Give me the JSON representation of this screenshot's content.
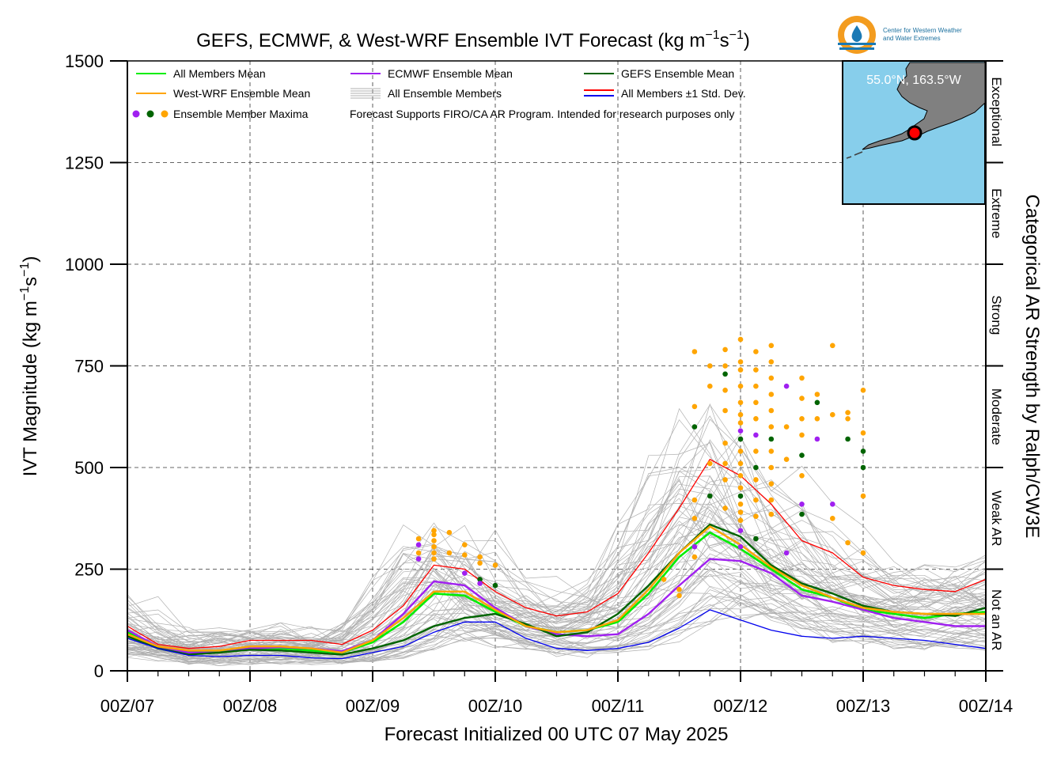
{
  "chart_data": {
    "type": "line",
    "title_main": "GEFS, ECMWF, & West-WRF Ensemble IVT Forecast (kg m",
    "title_sup1": "−1",
    "title_mid": "s",
    "title_sup2": "−1",
    "title_end": ")",
    "xlabel": "Forecast Initialized 00 UTC 07 May 2025",
    "ylabel_main": "IVT Magnitude (kg m",
    "ylabel_sup1": "−1",
    "ylabel_mid": "s",
    "ylabel_sup2": "−1",
    "ylabel_end": ")",
    "right_label": "Categorical AR Strength by Ralph/CW3E",
    "logo_text_1": "Center for Western Weather",
    "logo_text_2": "and Water Extremes",
    "location": "55.0°N, 163.5°W",
    "notice": "Forecast Supports FIRO/CA AR Program. Intended for research purposes only",
    "xlim": [
      0,
      168
    ],
    "ylim": [
      0,
      1500
    ],
    "x_ticks": [
      0,
      24,
      48,
      72,
      96,
      120,
      144,
      168
    ],
    "x_tick_labels": [
      "00Z/07",
      "00Z/08",
      "00Z/09",
      "00Z/10",
      "00Z/11",
      "00Z/12",
      "00Z/13",
      "00Z/14"
    ],
    "y_ticks": [
      0,
      250,
      500,
      750,
      1000,
      1250,
      1500
    ],
    "y_tick_labels": [
      "0",
      "250",
      "500",
      "750",
      "1000",
      "1250",
      "1500"
    ],
    "grid": true,
    "categories": [
      {
        "label": "Not an AR",
        "from": 0,
        "to": 250
      },
      {
        "label": "Weak AR",
        "from": 250,
        "to": 500
      },
      {
        "label": "Moderate",
        "from": 500,
        "to": 750
      },
      {
        "label": "Strong",
        "from": 750,
        "to": 1000
      },
      {
        "label": "Extreme",
        "from": 1000,
        "to": 1250
      },
      {
        "label": "Exceptional",
        "from": 1250,
        "to": 1500
      }
    ],
    "legend": [
      {
        "label": "All Members Mean",
        "color": "#00ee00",
        "kind": "line"
      },
      {
        "label": "ECMWF Ensemble Mean",
        "color": "#a020f0",
        "kind": "line"
      },
      {
        "label": "GEFS Ensemble Mean",
        "color": "#006400",
        "kind": "line"
      },
      {
        "label": "West-WRF Ensemble Mean",
        "color": "#ffa500",
        "kind": "line"
      },
      {
        "label": "All Ensemble Members",
        "color": "#b0b0b0",
        "kind": "multiline"
      },
      {
        "label": "All Members ±1 Std. Dev.",
        "color": "#ff0000",
        "color2": "#0000ee",
        "kind": "doubleline"
      },
      {
        "label": "Ensemble Member Maxima",
        "color": "#a020f0",
        "color2": "#006400",
        "color3": "#ffa500",
        "kind": "dots"
      }
    ],
    "x": [
      0,
      6,
      12,
      18,
      24,
      30,
      36,
      42,
      48,
      54,
      60,
      66,
      72,
      78,
      84,
      90,
      96,
      102,
      108,
      114,
      120,
      126,
      132,
      138,
      144,
      150,
      156,
      162,
      168
    ],
    "series": [
      {
        "name": "All Members Mean",
        "color": "#00ee00",
        "width": 2.6,
        "values": [
          95,
          60,
          45,
          48,
          55,
          55,
          50,
          45,
          70,
          120,
          190,
          185,
          145,
          110,
          95,
          100,
          120,
          190,
          280,
          340,
          300,
          250,
          200,
          180,
          150,
          140,
          130,
          140,
          145
        ]
      },
      {
        "name": "ECMWF Ensemble Mean",
        "color": "#a020f0",
        "width": 2.4,
        "values": [
          100,
          60,
          45,
          45,
          55,
          58,
          55,
          48,
          75,
          140,
          220,
          210,
          155,
          110,
          90,
          85,
          90,
          140,
          210,
          275,
          270,
          240,
          185,
          170,
          150,
          130,
          120,
          110,
          110
        ]
      },
      {
        "name": "GEFS Ensemble Mean",
        "color": "#006400",
        "width": 2.4,
        "values": [
          85,
          55,
          40,
          45,
          52,
          50,
          45,
          40,
          55,
          75,
          110,
          130,
          140,
          115,
          85,
          95,
          140,
          210,
          290,
          360,
          330,
          260,
          215,
          190,
          160,
          145,
          140,
          135,
          155
        ]
      },
      {
        "name": "West-WRF Ensemble Mean",
        "color": "#ffa500",
        "width": 2.4,
        "values": [
          90,
          60,
          50,
          50,
          60,
          60,
          55,
          45,
          75,
          130,
          195,
          195,
          150,
          110,
          95,
          100,
          125,
          200,
          290,
          355,
          310,
          255,
          210,
          180,
          155,
          145,
          140,
          140,
          140
        ]
      },
      {
        "name": "All Members +1 Std. Dev.",
        "color": "#ff0000",
        "width": 1.3,
        "values": [
          110,
          65,
          55,
          60,
          75,
          75,
          75,
          65,
          100,
          160,
          260,
          250,
          195,
          155,
          135,
          145,
          190,
          290,
          400,
          520,
          480,
          410,
          320,
          290,
          230,
          210,
          200,
          195,
          225
        ]
      },
      {
        "name": "All Members -1 Std. Dev.",
        "color": "#0000ee",
        "width": 1.3,
        "values": [
          80,
          55,
          38,
          35,
          38,
          38,
          32,
          30,
          45,
          60,
          95,
          120,
          120,
          80,
          55,
          50,
          55,
          70,
          105,
          150,
          125,
          100,
          85,
          80,
          85,
          80,
          75,
          65,
          55
        ]
      }
    ],
    "maxima_points": [
      {
        "x": 57,
        "y": 325,
        "c": "#ffa500"
      },
      {
        "x": 57,
        "y": 310,
        "c": "#a020f0"
      },
      {
        "x": 57,
        "y": 290,
        "c": "#ffa500"
      },
      {
        "x": 57,
        "y": 275,
        "c": "#a020f0"
      },
      {
        "x": 60,
        "y": 345,
        "c": "#ffa500"
      },
      {
        "x": 60,
        "y": 335,
        "c": "#ffa500"
      },
      {
        "x": 60,
        "y": 320,
        "c": "#ffa500"
      },
      {
        "x": 60,
        "y": 305,
        "c": "#ffa500"
      },
      {
        "x": 60,
        "y": 290,
        "c": "#ffa500"
      },
      {
        "x": 60,
        "y": 275,
        "c": "#ffa500"
      },
      {
        "x": 63,
        "y": 340,
        "c": "#ffa500"
      },
      {
        "x": 63,
        "y": 290,
        "c": "#ffa500"
      },
      {
        "x": 66,
        "y": 310,
        "c": "#ffa500"
      },
      {
        "x": 66,
        "y": 285,
        "c": "#ffa500"
      },
      {
        "x": 66,
        "y": 240,
        "c": "#a020f0"
      },
      {
        "x": 69,
        "y": 280,
        "c": "#ffa500"
      },
      {
        "x": 69,
        "y": 265,
        "c": "#ffa500"
      },
      {
        "x": 69,
        "y": 225,
        "c": "#006400"
      },
      {
        "x": 69,
        "y": 215,
        "c": "#a020f0"
      },
      {
        "x": 72,
        "y": 260,
        "c": "#ffa500"
      },
      {
        "x": 72,
        "y": 210,
        "c": "#006400"
      },
      {
        "x": 105,
        "y": 225,
        "c": "#ffa500"
      },
      {
        "x": 108,
        "y": 200,
        "c": "#ffa500"
      },
      {
        "x": 108,
        "y": 185,
        "c": "#ffa500"
      },
      {
        "x": 111,
        "y": 785,
        "c": "#ffa500"
      },
      {
        "x": 111,
        "y": 650,
        "c": "#ffa500"
      },
      {
        "x": 111,
        "y": 600,
        "c": "#006400"
      },
      {
        "x": 111,
        "y": 420,
        "c": "#ffa500"
      },
      {
        "x": 111,
        "y": 375,
        "c": "#ffa500"
      },
      {
        "x": 111,
        "y": 305,
        "c": "#a020f0"
      },
      {
        "x": 111,
        "y": 280,
        "c": "#ffa500"
      },
      {
        "x": 114,
        "y": 750,
        "c": "#ffa500"
      },
      {
        "x": 114,
        "y": 700,
        "c": "#ffa500"
      },
      {
        "x": 114,
        "y": 510,
        "c": "#ffa500"
      },
      {
        "x": 114,
        "y": 430,
        "c": "#006400"
      },
      {
        "x": 117,
        "y": 790,
        "c": "#ffa500"
      },
      {
        "x": 117,
        "y": 750,
        "c": "#ffa500"
      },
      {
        "x": 117,
        "y": 730,
        "c": "#006400"
      },
      {
        "x": 117,
        "y": 690,
        "c": "#ffa500"
      },
      {
        "x": 117,
        "y": 640,
        "c": "#ffa500"
      },
      {
        "x": 117,
        "y": 560,
        "c": "#ffa500"
      },
      {
        "x": 117,
        "y": 510,
        "c": "#ffa500"
      },
      {
        "x": 117,
        "y": 470,
        "c": "#ffa500"
      },
      {
        "x": 117,
        "y": 400,
        "c": "#ffa500"
      },
      {
        "x": 120,
        "y": 815,
        "c": "#ffa500"
      },
      {
        "x": 120,
        "y": 760,
        "c": "#ffa500"
      },
      {
        "x": 120,
        "y": 740,
        "c": "#ffa500"
      },
      {
        "x": 120,
        "y": 700,
        "c": "#ffa500"
      },
      {
        "x": 120,
        "y": 660,
        "c": "#ffa500"
      },
      {
        "x": 120,
        "y": 630,
        "c": "#ffa500"
      },
      {
        "x": 120,
        "y": 610,
        "c": "#ffa500"
      },
      {
        "x": 120,
        "y": 590,
        "c": "#a020f0"
      },
      {
        "x": 120,
        "y": 570,
        "c": "#006400"
      },
      {
        "x": 120,
        "y": 540,
        "c": "#ffa500"
      },
      {
        "x": 120,
        "y": 510,
        "c": "#ffa500"
      },
      {
        "x": 120,
        "y": 480,
        "c": "#ffa500"
      },
      {
        "x": 120,
        "y": 450,
        "c": "#ffa500"
      },
      {
        "x": 120,
        "y": 430,
        "c": "#006400"
      },
      {
        "x": 120,
        "y": 410,
        "c": "#ffa500"
      },
      {
        "x": 120,
        "y": 390,
        "c": "#ffa500"
      },
      {
        "x": 120,
        "y": 370,
        "c": "#ffa500"
      },
      {
        "x": 120,
        "y": 345,
        "c": "#a020f0"
      },
      {
        "x": 120,
        "y": 305,
        "c": "#a020f0"
      },
      {
        "x": 123,
        "y": 785,
        "c": "#ffa500"
      },
      {
        "x": 123,
        "y": 740,
        "c": "#ffa500"
      },
      {
        "x": 123,
        "y": 700,
        "c": "#ffa500"
      },
      {
        "x": 123,
        "y": 660,
        "c": "#ffa500"
      },
      {
        "x": 123,
        "y": 620,
        "c": "#ffa500"
      },
      {
        "x": 123,
        "y": 580,
        "c": "#a020f0"
      },
      {
        "x": 123,
        "y": 540,
        "c": "#ffa500"
      },
      {
        "x": 123,
        "y": 500,
        "c": "#006400"
      },
      {
        "x": 123,
        "y": 470,
        "c": "#ffa500"
      },
      {
        "x": 123,
        "y": 420,
        "c": "#ffa500"
      },
      {
        "x": 123,
        "y": 380,
        "c": "#ffa500"
      },
      {
        "x": 123,
        "y": 325,
        "c": "#006400"
      },
      {
        "x": 126,
        "y": 800,
        "c": "#ffa500"
      },
      {
        "x": 126,
        "y": 760,
        "c": "#ffa500"
      },
      {
        "x": 126,
        "y": 720,
        "c": "#ffa500"
      },
      {
        "x": 126,
        "y": 680,
        "c": "#ffa500"
      },
      {
        "x": 126,
        "y": 640,
        "c": "#ffa500"
      },
      {
        "x": 126,
        "y": 600,
        "c": "#ffa500"
      },
      {
        "x": 126,
        "y": 570,
        "c": "#006400"
      },
      {
        "x": 126,
        "y": 540,
        "c": "#ffa500"
      },
      {
        "x": 126,
        "y": 500,
        "c": "#ffa500"
      },
      {
        "x": 126,
        "y": 460,
        "c": "#ffa500"
      },
      {
        "x": 126,
        "y": 420,
        "c": "#ffa500"
      },
      {
        "x": 126,
        "y": 385,
        "c": "#ffa500"
      },
      {
        "x": 129,
        "y": 700,
        "c": "#a020f0"
      },
      {
        "x": 129,
        "y": 600,
        "c": "#ffa500"
      },
      {
        "x": 129,
        "y": 520,
        "c": "#ffa500"
      },
      {
        "x": 129,
        "y": 290,
        "c": "#a020f0"
      },
      {
        "x": 132,
        "y": 720,
        "c": "#ffa500"
      },
      {
        "x": 132,
        "y": 670,
        "c": "#ffa500"
      },
      {
        "x": 132,
        "y": 620,
        "c": "#ffa500"
      },
      {
        "x": 132,
        "y": 580,
        "c": "#ffa500"
      },
      {
        "x": 132,
        "y": 530,
        "c": "#006400"
      },
      {
        "x": 132,
        "y": 480,
        "c": "#ffa500"
      },
      {
        "x": 132,
        "y": 410,
        "c": "#a020f0"
      },
      {
        "x": 132,
        "y": 385,
        "c": "#006400"
      },
      {
        "x": 135,
        "y": 680,
        "c": "#ffa500"
      },
      {
        "x": 135,
        "y": 660,
        "c": "#006400"
      },
      {
        "x": 135,
        "y": 620,
        "c": "#ffa500"
      },
      {
        "x": 135,
        "y": 570,
        "c": "#a020f0"
      },
      {
        "x": 138,
        "y": 800,
        "c": "#ffa500"
      },
      {
        "x": 138,
        "y": 630,
        "c": "#ffa500"
      },
      {
        "x": 138,
        "y": 410,
        "c": "#a020f0"
      },
      {
        "x": 138,
        "y": 375,
        "c": "#ffa500"
      },
      {
        "x": 141,
        "y": 635,
        "c": "#ffa500"
      },
      {
        "x": 141,
        "y": 620,
        "c": "#ffa500"
      },
      {
        "x": 141,
        "y": 570,
        "c": "#006400"
      },
      {
        "x": 141,
        "y": 315,
        "c": "#ffa500"
      },
      {
        "x": 144,
        "y": 690,
        "c": "#ffa500"
      },
      {
        "x": 144,
        "y": 585,
        "c": "#ffa500"
      },
      {
        "x": 144,
        "y": 540,
        "c": "#006400"
      },
      {
        "x": 144,
        "y": 500,
        "c": "#006400"
      },
      {
        "x": 144,
        "y": 430,
        "c": "#ffa500"
      },
      {
        "x": 144,
        "y": 290,
        "c": "#ffa500"
      }
    ]
  }
}
